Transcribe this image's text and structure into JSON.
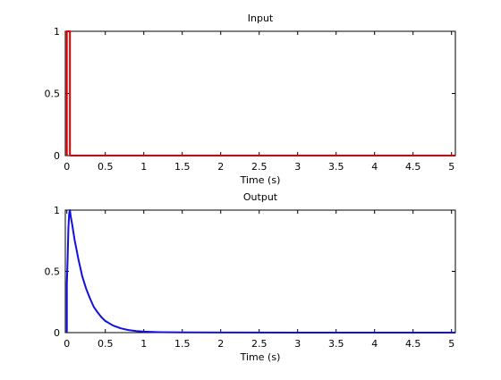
{
  "chart_data": [
    {
      "type": "line",
      "title": "Input",
      "xlabel": "Time (s)",
      "ylabel": "",
      "xlim": [
        -0.02,
        5.05
      ],
      "ylim": [
        0,
        1
      ],
      "xticks": [
        0,
        0.5,
        1,
        1.5,
        2,
        2.5,
        3,
        3.5,
        4,
        4.5,
        5
      ],
      "xtick_labels": [
        "0",
        "0.5",
        "1",
        "1.5",
        "2",
        "2.5",
        "3",
        "3.5",
        "4",
        "4.5",
        "5"
      ],
      "yticks": [
        0,
        0.5,
        1
      ],
      "ytick_labels": [
        "0",
        "0.5",
        "1"
      ],
      "grid": false,
      "series": [
        {
          "color": "#e00000",
          "x": [
            0,
            0,
            0.04,
            0.04,
            5.05
          ],
          "y": [
            0,
            1,
            1,
            0,
            0
          ]
        }
      ]
    },
    {
      "type": "line",
      "title": "Output",
      "xlabel": "Time (s)",
      "ylabel": "",
      "xlim": [
        -0.02,
        5.05
      ],
      "ylim": [
        0,
        1
      ],
      "xticks": [
        0,
        0.5,
        1,
        1.5,
        2,
        2.5,
        3,
        3.5,
        4,
        4.5,
        5
      ],
      "xtick_labels": [
        "0",
        "0.5",
        "1",
        "1.5",
        "2",
        "2.5",
        "3",
        "3.5",
        "4",
        "4.5",
        "5"
      ],
      "yticks": [
        0,
        0.5,
        1
      ],
      "ytick_labels": [
        "0",
        "0.5",
        "1"
      ],
      "grid": false,
      "series": [
        {
          "color": "#1010e0",
          "x": [
            0,
            0,
            0.01,
            0.02,
            0.03,
            0.04,
            0.05,
            0.07,
            0.1,
            0.15,
            0.2,
            0.25,
            0.3,
            0.35,
            0.4,
            0.45,
            0.5,
            0.6,
            0.7,
            0.8,
            0.9,
            1.0,
            1.2,
            1.5,
            2,
            3,
            4,
            5.05
          ],
          "y": [
            0,
            0.4,
            0.6,
            0.85,
            0.97,
            1.0,
            0.95,
            0.88,
            0.76,
            0.6,
            0.46,
            0.36,
            0.28,
            0.21,
            0.165,
            0.125,
            0.095,
            0.058,
            0.035,
            0.021,
            0.013,
            0.008,
            0.004,
            0.002,
            0.001,
            0,
            0,
            0
          ]
        }
      ]
    }
  ]
}
